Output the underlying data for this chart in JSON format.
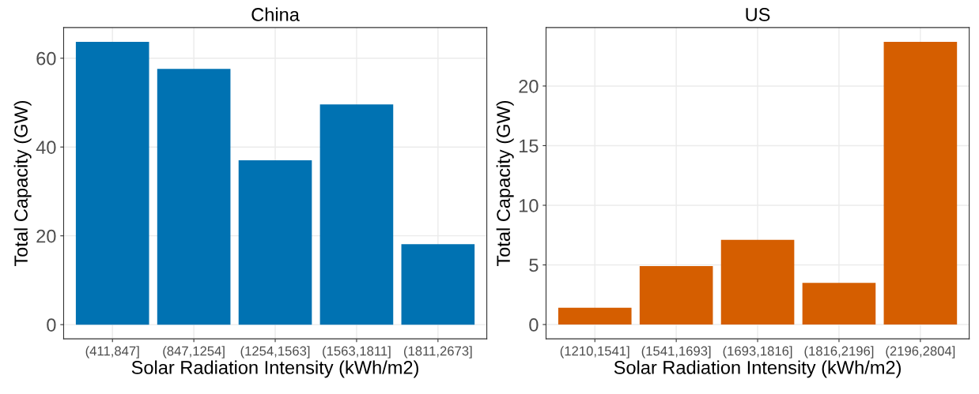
{
  "chart_data": [
    {
      "type": "bar",
      "title": "China",
      "xlabel": "Solar Radiation Intensity (kWh/m2)",
      "ylabel": "Total Capacity (GW)",
      "categories": [
        "(411,847]",
        "(847,1254]",
        "(1254,1563]",
        "(1563,1811]",
        "(1811,2673]"
      ],
      "values": [
        63.7,
        57.6,
        37.0,
        49.6,
        18.1
      ],
      "color": "#0072b2",
      "ylim": [
        -3.2,
        66.9
      ],
      "yticks": [
        0,
        20,
        40,
        60
      ],
      "grid": true
    },
    {
      "type": "bar",
      "title": "US",
      "xlabel": "Solar Radiation Intensity (kWh/m2)",
      "ylabel": "Total Capacity (GW)",
      "categories": [
        "(1210,1541]",
        "(1541,1693]",
        "(1693,1816]",
        "(1816,2196]",
        "(2196,2804]"
      ],
      "values": [
        1.4,
        4.9,
        7.1,
        3.5,
        23.7
      ],
      "color": "#d55e00",
      "ylim": [
        -1.2,
        24.9
      ],
      "yticks": [
        0,
        5,
        10,
        15,
        20
      ],
      "grid": true
    }
  ]
}
